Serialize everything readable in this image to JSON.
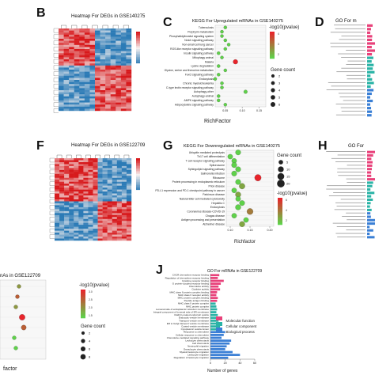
{
  "panels": {
    "B": {
      "letter": "B",
      "title": "Heatmap For DEGs in GSE140275"
    },
    "C": {
      "letter": "C",
      "title": "KEGG For Upregulated mRNAs in GSE140275",
      "legend_color_title": "-log10(pvalue)",
      "legend_color_ticks": [
        "4",
        "3",
        "2"
      ],
      "legend_size_title": "Gene count",
      "legend_size_ticks": [
        "2",
        "3",
        "4",
        "5",
        "6"
      ],
      "xlabel": "RichFactor",
      "xticks": [
        "0.05",
        "0.10",
        "0.15"
      ]
    },
    "D": {
      "letter": "D",
      "title": "GO For m"
    },
    "F": {
      "letter": "F",
      "title": "Heatmap For DEGs in GSE122709"
    },
    "G": {
      "letter": "G",
      "title": "KEGG For Downregulated mRNAs in GSE140275",
      "legend_size_title": "Gene count",
      "legend_size_ticks": [
        "5",
        "10",
        "15",
        "20"
      ],
      "legend_color_title": "-log10(pvalue)",
      "legend_color_ticks": [
        "6",
        "4",
        "2"
      ],
      "xlabel": "Richfactor",
      "xticks": [
        "0.10",
        "0.15",
        "0.20"
      ]
    },
    "H": {
      "letter": "H",
      "title": "GO For"
    },
    "I": {
      "title": "nAs in GSE122709",
      "legend_color_title": "-log10(pvalue)",
      "legend_color_ticks": [
        "3.0",
        "2.5",
        "2.0",
        "1.5"
      ],
      "legend_size_title": "Gene count",
      "legend_size_ticks": [
        "2",
        "4",
        "6",
        "8"
      ],
      "xlabel": "factor"
    },
    "J": {
      "letter": "J",
      "title": "GO For mRNAs in GSE122709",
      "legend": [
        "Molecular function",
        "Cellular component",
        "Biological process"
      ],
      "xlabel": "Number of genes",
      "xticks": [
        "0",
        "20",
        "40",
        "60"
      ]
    }
  },
  "colors": {
    "heat_high": "#d7191c",
    "heat_low": "#2c7bb6",
    "mf": "#e8417a",
    "cc": "#29b3a6",
    "bp": "#3a7fd5",
    "grad_top": "#e8242b",
    "grad_bottom": "#5fd14a"
  },
  "chart_data": [
    {
      "type": "scatter",
      "panel": "C",
      "categories": [
        "Tuberculosis",
        "Porphyrin metabolism",
        "Phosphatidylinositol signaling system",
        "Notch signaling pathway",
        "Non-small cell lung cancer",
        "ROS-like receptor signaling pathway",
        "Insulin signaling pathway",
        "Mitophagy animal",
        "Malaria",
        "Lysine degradation",
        "Glycine, serine and threonine metabolism",
        "FoxO signaling pathway",
        "Endocytosis",
        "Chronic myeloid leukemia",
        "C-type lectin receptor signaling pathway",
        "Autophagy-other",
        "Autophagy-animal",
        "AMPK signaling pathway",
        "Adipocytokine signaling pathway"
      ],
      "x": [
        0.05,
        0.04,
        0.04,
        0.05,
        0.06,
        0.05,
        0.03,
        0.04,
        0.08,
        0.03,
        0.05,
        0.03,
        0.02,
        0.04,
        0.04,
        0.11,
        0.03,
        0.03,
        0.05
      ],
      "sizes": [
        2,
        2,
        2,
        2,
        2,
        2,
        2,
        2,
        6,
        2,
        2,
        2,
        2,
        2,
        2,
        3,
        2,
        2,
        2
      ],
      "colors": [
        2,
        2,
        2,
        2,
        2,
        2,
        2,
        2,
        4,
        2,
        2,
        2,
        2,
        2,
        2,
        2,
        2,
        2,
        2
      ],
      "xlabel": "RichFactor",
      "xlim": [
        0.02,
        0.17
      ]
    },
    {
      "type": "scatter",
      "panel": "G",
      "categories": [
        "Ubiquitin mediated proteolysis",
        "Th17 cell differentiation",
        "T cell receptor signaling pathway",
        "Spliceosome",
        "Sphingolipid signaling pathway",
        "Salmonella infection",
        "Ribosome",
        "Protein processing in endoplasmic reticulum",
        "Prion disease",
        "PD-L1 expression and PD-1 checkpoint pathway in cancer",
        "Parkinson disease",
        "Natural killer cell mediated cytotoxicity",
        "Hepatitis C",
        "Endocytosis",
        "Coronavirus disease-COVID-19",
        "Chagas disease",
        "Antigen processing and presentation",
        "Alzheimer disease"
      ],
      "x": [
        0.12,
        0.1,
        0.11,
        0.11,
        0.12,
        0.11,
        0.17,
        0.12,
        0.13,
        0.11,
        0.12,
        0.12,
        0.13,
        0.12,
        0.15,
        0.11,
        0.14,
        0.13
      ],
      "sizes": [
        8,
        7,
        7,
        8,
        8,
        8,
        14,
        8,
        10,
        7,
        9,
        7,
        8,
        9,
        12,
        7,
        7,
        9
      ],
      "colors": [
        2,
        2,
        2,
        2,
        2,
        2,
        6,
        2,
        3,
        2,
        3,
        2,
        2,
        2,
        4,
        2,
        2,
        3
      ],
      "xlabel": "Richfactor",
      "xlim": [
        0.09,
        0.21
      ]
    },
    {
      "type": "bar",
      "panel": "J",
      "categories": [
        "CXCR chemokine receptor binding",
        "Regulation of chemokine receptor binding",
        "Cytokine receptor binding",
        "G protein-coupled receptor binding",
        "Chemokine activity",
        "Cytokine activity",
        "MHC class II protein complex binding",
        "MHC class II receptor activity",
        "MHC protein complex binding",
        "Peptide antigen binding",
        "MHC class II protein complex",
        "MHC protein complex",
        "Lumenal side of endoplasmic reticulum membrane",
        "Integral component of lumenal side of ER membrane",
        "Clathrin-coated endocytic vesicle",
        "Endocytic vesicle membrane",
        "Transport vesicle membrane",
        "ER to Golgi transport vesicle membrane",
        "Coated vesicle membrane",
        "Cytoplasmic vesicle lumen",
        "Response to chemokine",
        "Cellular response to chemokine",
        "Chemokine-mediated signaling pathway",
        "Leukocyte chemotaxis",
        "Cell chemotaxis",
        "Neutrophil migration",
        "Granulocyte chemotaxis",
        "Myeloid leukocyte migration",
        "Leukocyte migration",
        "Regulation of leukocyte migration"
      ],
      "values": [
        12,
        10,
        18,
        14,
        11,
        13,
        9,
        8,
        10,
        9,
        7,
        8,
        9,
        8,
        10,
        12,
        11,
        9,
        13,
        10,
        20,
        18,
        15,
        28,
        26,
        22,
        20,
        30,
        40,
        24
      ],
      "groups": [
        "mf",
        "mf",
        "mf",
        "mf",
        "mf",
        "mf",
        "mf",
        "mf",
        "mf",
        "mf",
        "cc",
        "cc",
        "cc",
        "cc",
        "cc",
        "cc",
        "cc",
        "cc",
        "cc",
        "cc",
        "bp",
        "bp",
        "bp",
        "bp",
        "bp",
        "bp",
        "bp",
        "bp",
        "bp",
        "bp"
      ],
      "xlabel": "Number of genes",
      "xlim": [
        0,
        60
      ]
    },
    {
      "type": "scatter",
      "panel": "I",
      "x": [
        0.6,
        0.55,
        0.5,
        0.7,
        0.75,
        0.45,
        0.5
      ],
      "sizes": [
        2,
        2,
        2,
        6,
        4,
        2,
        2
      ],
      "colors": [
        2.0,
        2.5,
        2.0,
        3.0,
        2.5,
        1.5,
        1.5
      ]
    }
  ]
}
